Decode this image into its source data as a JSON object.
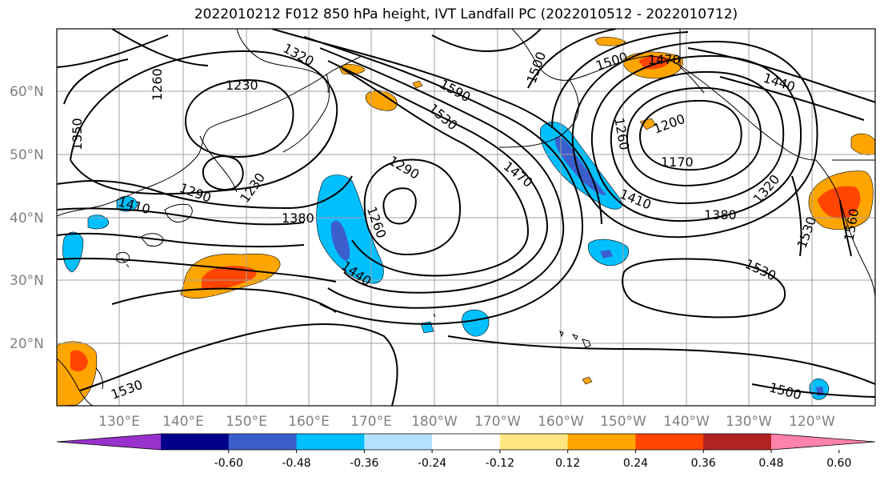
{
  "title": "2022010212 F012 850 hPa height, IVT Landfall PC (2022010512 - 2022010712)",
  "lat_labels": [
    "60°N",
    "50°N",
    "40°N",
    "30°N",
    "20°N"
  ],
  "lon_labels": [
    "130°E",
    "140°E",
    "150°E",
    "160°E",
    "170°E",
    "180°W",
    "170°W",
    "160°W",
    "150°W",
    "140°W",
    "130°W",
    "120°W"
  ],
  "colorbar": {
    "colors": [
      "#9932cc",
      "#00008b",
      "#3a5fcd",
      "#00bfff",
      "#b2e2ff",
      "#ffffff",
      "#ffe680",
      "#ffa500",
      "#ff4500",
      "#b22222",
      "#ff82ab"
    ],
    "tick_labels": [
      "-0.60",
      "-0.48",
      "-0.36",
      "-0.24",
      "-0.12",
      "0.12",
      "0.24",
      "0.36",
      "0.48",
      "0.60"
    ]
  },
  "contour_labels": [
    "1320",
    "1590",
    "1500",
    "1470",
    "1440",
    "1260",
    "1230",
    "1530",
    "1350",
    "1200",
    "1290",
    "1260",
    "1170",
    "1290",
    "1230",
    "1410",
    "1470",
    "1380",
    "1410",
    "1380",
    "1320",
    "1260",
    "1500",
    "1440",
    "1530",
    "1530",
    "1530",
    "1560",
    "1500"
  ]
}
